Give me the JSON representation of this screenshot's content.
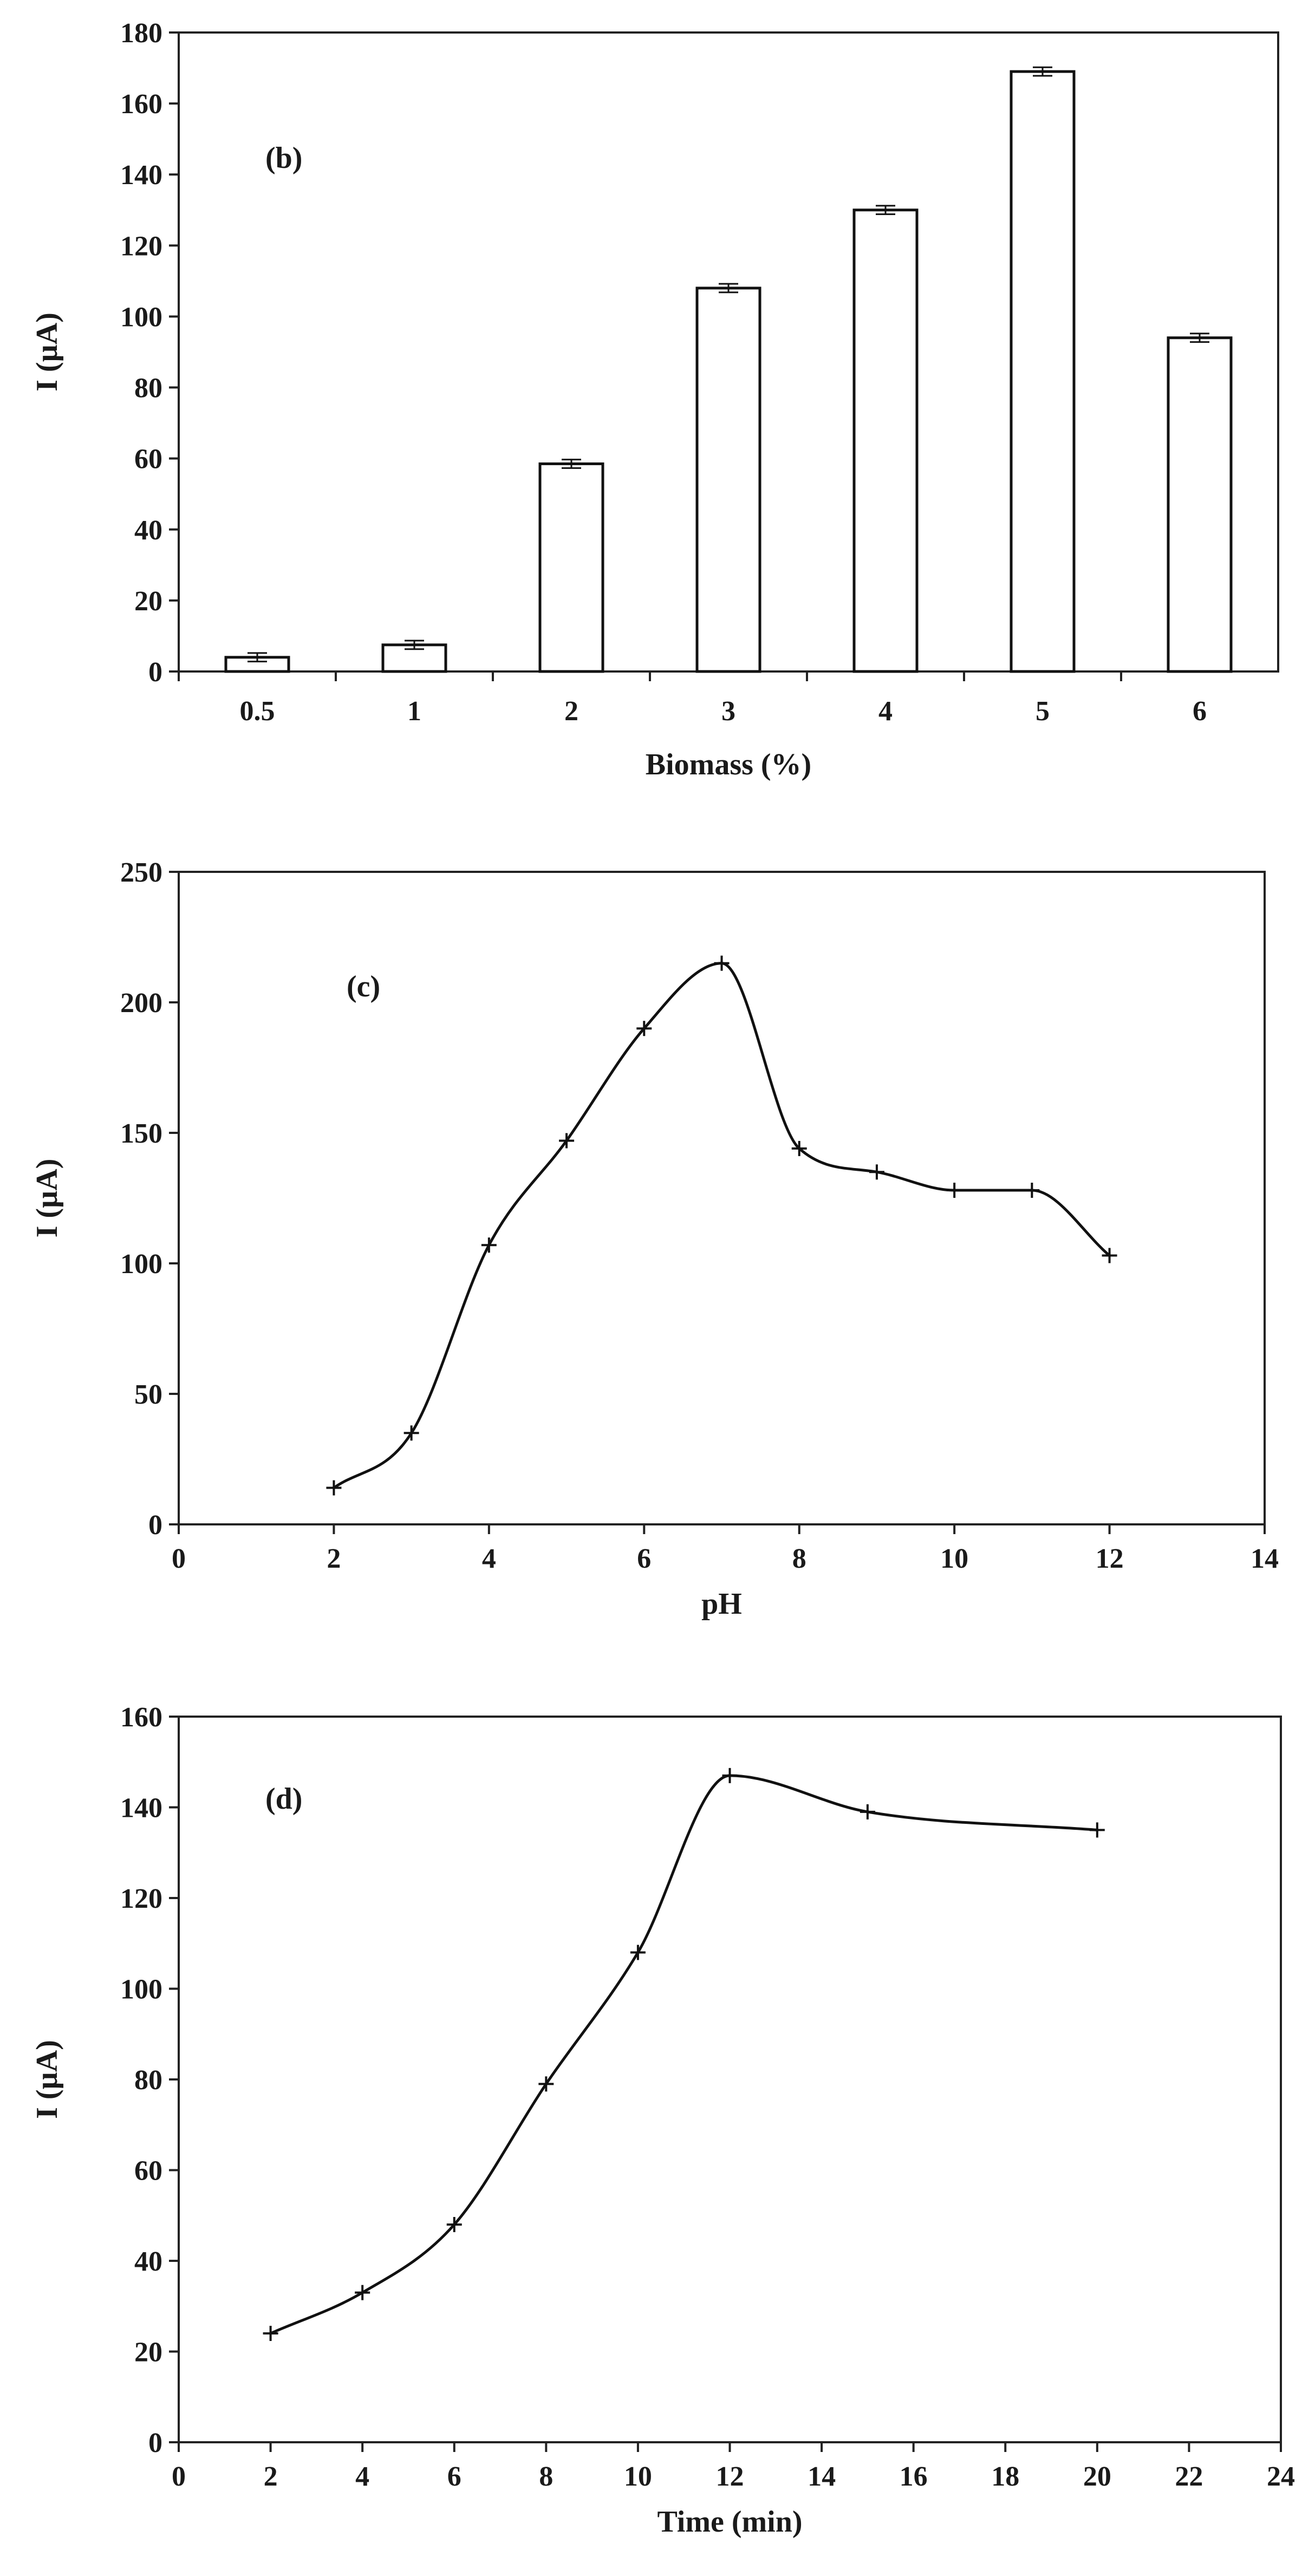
{
  "chart_data": [
    {
      "type": "bar",
      "panel_label": "(b)",
      "categories": [
        "0.5",
        "1",
        "2",
        "3",
        "4",
        "5",
        "6"
      ],
      "values": [
        4,
        7.5,
        58.5,
        108,
        130,
        169,
        94
      ],
      "errors": [
        1.2,
        1.2,
        1.2,
        1.2,
        1.2,
        1.2,
        1.2
      ],
      "xlabel": "Biomass (%)",
      "ylabel": "I (µA)",
      "ylim": [
        0,
        180
      ],
      "yticks": [
        0,
        20,
        40,
        60,
        80,
        100,
        120,
        140,
        160,
        180
      ],
      "grid": false
    },
    {
      "type": "line",
      "panel_label": "(c)",
      "x": [
        2,
        3,
        4,
        5,
        6,
        7,
        8,
        9,
        10,
        11,
        12
      ],
      "y": [
        14,
        35,
        107,
        147,
        190,
        215,
        144,
        135,
        128,
        128,
        103
      ],
      "xlabel": "pH",
      "ylabel": "I (µA)",
      "xlim": [
        0,
        14
      ],
      "ylim": [
        0,
        250
      ],
      "xticks": [
        0,
        2,
        4,
        6,
        8,
        10,
        12,
        14
      ],
      "yticks": [
        0,
        50,
        100,
        150,
        200,
        250
      ],
      "grid": false
    },
    {
      "type": "line",
      "panel_label": "(d)",
      "x": [
        2,
        4,
        6,
        8,
        10,
        12,
        15,
        20
      ],
      "y": [
        24,
        33,
        48,
        79,
        108,
        147,
        139,
        135
      ],
      "xlabel": "Time (min)",
      "ylabel": "I (µA)",
      "xlim": [
        0,
        24
      ],
      "ylim": [
        0,
        160
      ],
      "xticks": [
        0,
        2,
        4,
        6,
        8,
        10,
        12,
        14,
        16,
        18,
        20,
        22,
        24
      ],
      "yticks": [
        0,
        20,
        40,
        60,
        80,
        100,
        120,
        140,
        160
      ],
      "grid": false
    }
  ]
}
